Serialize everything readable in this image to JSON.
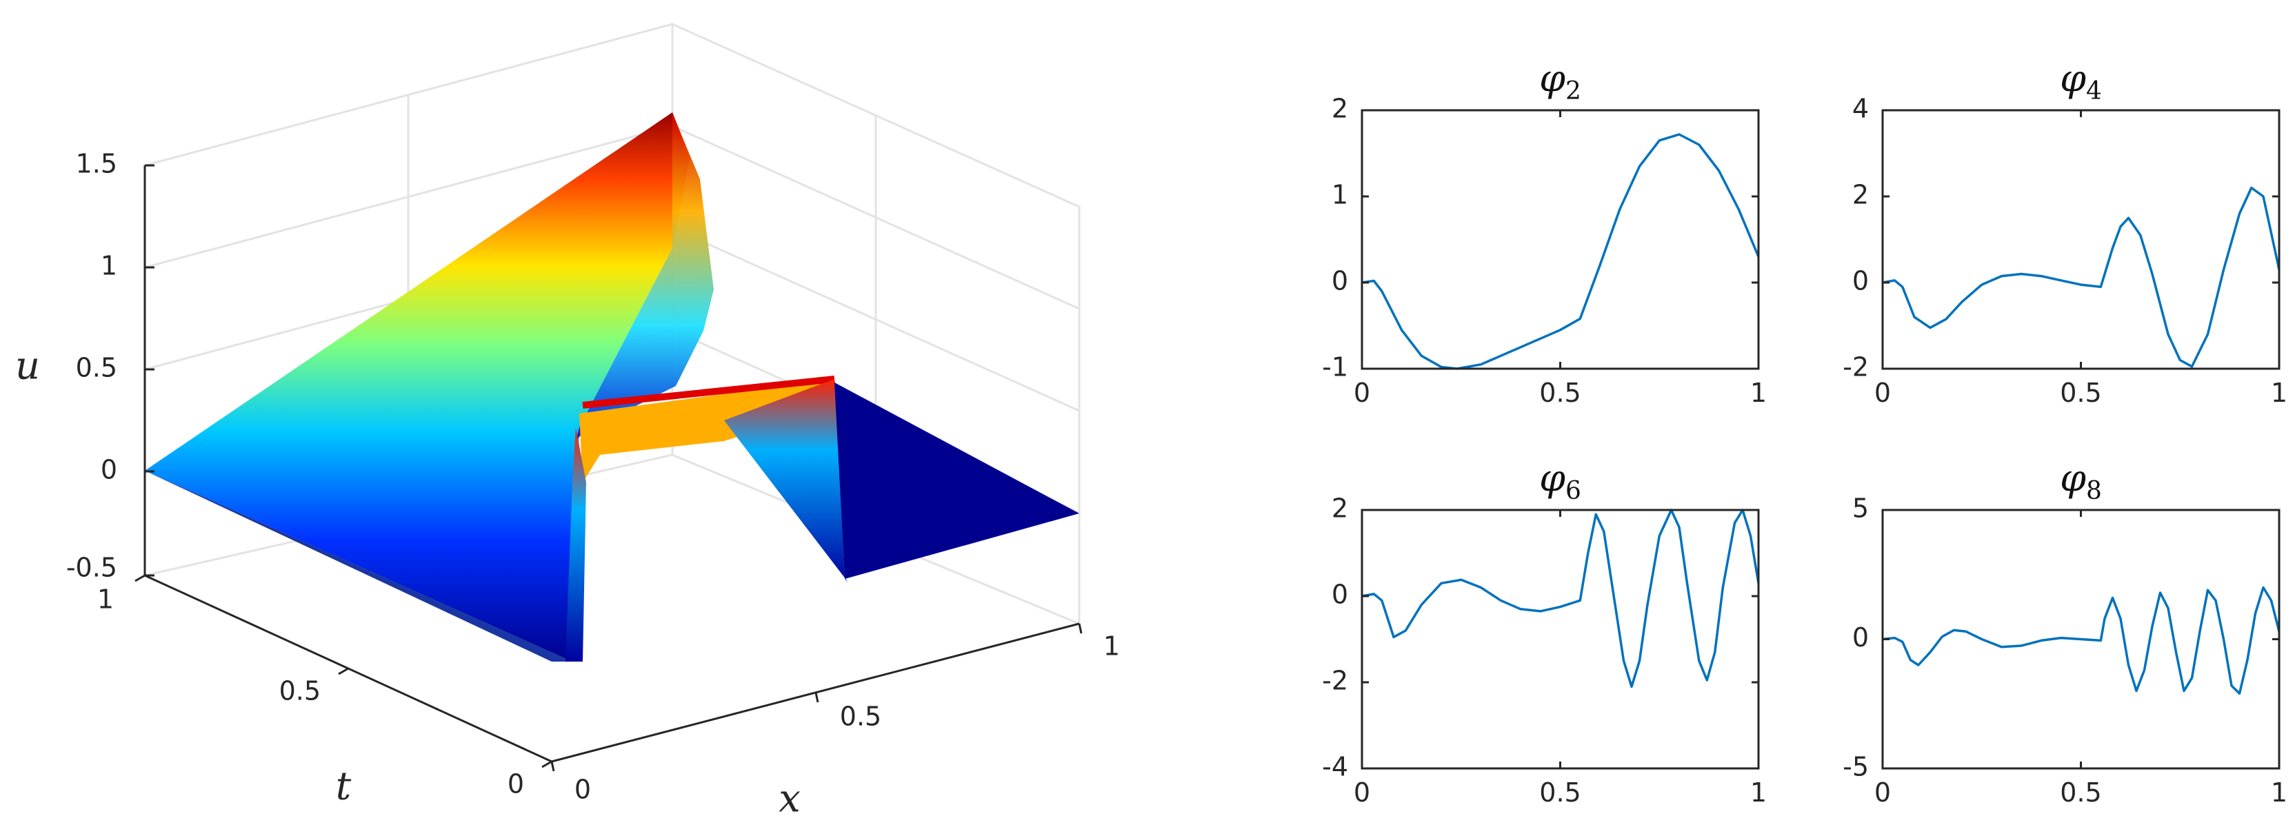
{
  "colors": {
    "curve": "#0072bd",
    "axis": "#262626",
    "grid": "#e0e0e0"
  },
  "chart_data": [
    {
      "type": "surface",
      "xlabel": "x",
      "ylabel": "t",
      "zlabel": "u",
      "xlim": [
        0,
        1
      ],
      "ylim": [
        0,
        1
      ],
      "zlim": [
        -0.5,
        1.5
      ],
      "x_ticks": [
        "0",
        "0.5",
        "1"
      ],
      "t_ticks": [
        "0",
        "0.5",
        "1"
      ],
      "z_ticks": [
        "-0.5",
        "0",
        "0.5",
        "1",
        "1.5"
      ],
      "colormap": "jet",
      "grid": true,
      "description_values": {
        "peak_u": 1.5,
        "profile_at_t1": {
          "x": [
            0,
            0.45,
            0.5,
            0.85,
            0.9,
            1.0
          ],
          "u": [
            0,
            1.5,
            0.85,
            0.75,
            0,
            0
          ]
        },
        "profile_at_t0": {
          "x": [
            0,
            0.45,
            0.5,
            0.85,
            0.9,
            1.0
          ],
          "u": [
            0,
            0,
            -0.35,
            -0.35,
            -0.35,
            0
          ]
        }
      }
    },
    {
      "type": "line",
      "title_base": "φ",
      "title_sub": "2",
      "xlim": [
        0,
        1
      ],
      "ylim": [
        -1,
        2
      ],
      "x_ticks": [
        "0",
        "0.5",
        "1"
      ],
      "y_ticks": [
        "-1",
        "0",
        "1",
        "2"
      ],
      "series": [
        {
          "x": [
            0,
            0.03,
            0.05,
            0.1,
            0.15,
            0.2,
            0.24,
            0.3,
            0.35,
            0.4,
            0.45,
            0.5,
            0.55,
            0.6,
            0.65,
            0.7,
            0.75,
            0.8,
            0.85,
            0.9,
            0.95,
            1.0
          ],
          "values": [
            0,
            0.02,
            -0.1,
            -0.55,
            -0.85,
            -0.98,
            -1.0,
            -0.95,
            -0.85,
            -0.75,
            -0.65,
            -0.55,
            -0.42,
            0.2,
            0.85,
            1.35,
            1.65,
            1.72,
            1.6,
            1.3,
            0.85,
            0.3
          ]
        }
      ]
    },
    {
      "type": "line",
      "title_base": "φ",
      "title_sub": "4",
      "xlim": [
        0,
        1
      ],
      "ylim": [
        -2,
        4
      ],
      "x_ticks": [
        "0",
        "0.5",
        "1"
      ],
      "y_ticks": [
        "-2",
        "0",
        "2",
        "4"
      ],
      "series": [
        {
          "x": [
            0,
            0.03,
            0.05,
            0.08,
            0.12,
            0.16,
            0.2,
            0.25,
            0.3,
            0.35,
            0.4,
            0.45,
            0.5,
            0.55,
            0.58,
            0.6,
            0.62,
            0.65,
            0.68,
            0.72,
            0.75,
            0.78,
            0.82,
            0.86,
            0.9,
            0.93,
            0.96,
            1.0
          ],
          "values": [
            0,
            0.05,
            -0.1,
            -0.8,
            -1.05,
            -0.85,
            -0.45,
            -0.05,
            0.15,
            0.2,
            0.15,
            0.05,
            -0.05,
            -0.1,
            0.8,
            1.3,
            1.5,
            1.1,
            0.2,
            -1.2,
            -1.8,
            -1.95,
            -1.2,
            0.3,
            1.6,
            2.2,
            2.0,
            0.3
          ]
        }
      ]
    },
    {
      "type": "line",
      "title_base": "φ",
      "title_sub": "6",
      "xlim": [
        0,
        1
      ],
      "ylim": [
        -4,
        2
      ],
      "x_ticks": [
        "0",
        "0.5",
        "1"
      ],
      "y_ticks": [
        "-4",
        "-2",
        "0",
        "2"
      ],
      "series": [
        {
          "x": [
            0,
            0.03,
            0.05,
            0.08,
            0.11,
            0.15,
            0.2,
            0.25,
            0.3,
            0.35,
            0.4,
            0.45,
            0.5,
            0.55,
            0.57,
            0.59,
            0.61,
            0.63,
            0.66,
            0.68,
            0.7,
            0.72,
            0.75,
            0.78,
            0.8,
            0.82,
            0.85,
            0.87,
            0.89,
            0.91,
            0.94,
            0.96,
            0.98,
            1.0
          ],
          "values": [
            0,
            0.05,
            -0.1,
            -0.95,
            -0.8,
            -0.2,
            0.3,
            0.38,
            0.2,
            -0.1,
            -0.3,
            -0.35,
            -0.25,
            -0.1,
            1.0,
            1.9,
            1.5,
            0.3,
            -1.5,
            -2.1,
            -1.5,
            -0.2,
            1.4,
            2.0,
            1.6,
            0.3,
            -1.5,
            -1.95,
            -1.3,
            0.2,
            1.7,
            2.0,
            1.4,
            0.3
          ]
        }
      ]
    },
    {
      "type": "line",
      "title_base": "φ",
      "title_sub": "8",
      "xlim": [
        0,
        1
      ],
      "ylim": [
        -5,
        5
      ],
      "x_ticks": [
        "0",
        "0.5",
        "1"
      ],
      "y_ticks": [
        "-5",
        "0",
        "5"
      ],
      "series": [
        {
          "x": [
            0,
            0.03,
            0.05,
            0.07,
            0.09,
            0.12,
            0.15,
            0.18,
            0.21,
            0.25,
            0.3,
            0.35,
            0.4,
            0.45,
            0.5,
            0.55,
            0.56,
            0.58,
            0.6,
            0.62,
            0.64,
            0.66,
            0.68,
            0.7,
            0.72,
            0.74,
            0.76,
            0.78,
            0.8,
            0.82,
            0.84,
            0.86,
            0.88,
            0.9,
            0.92,
            0.94,
            0.96,
            0.98,
            1.0
          ],
          "values": [
            0,
            0.05,
            -0.1,
            -0.8,
            -1.0,
            -0.5,
            0.1,
            0.35,
            0.3,
            0.0,
            -0.3,
            -0.25,
            -0.05,
            0.05,
            0.0,
            -0.05,
            0.8,
            1.6,
            0.8,
            -1.0,
            -2.0,
            -1.2,
            0.5,
            1.8,
            1.2,
            -0.5,
            -2.0,
            -1.5,
            0.3,
            1.9,
            1.5,
            0.0,
            -1.8,
            -2.1,
            -0.8,
            1.0,
            2.0,
            1.5,
            0.3
          ]
        }
      ]
    }
  ]
}
